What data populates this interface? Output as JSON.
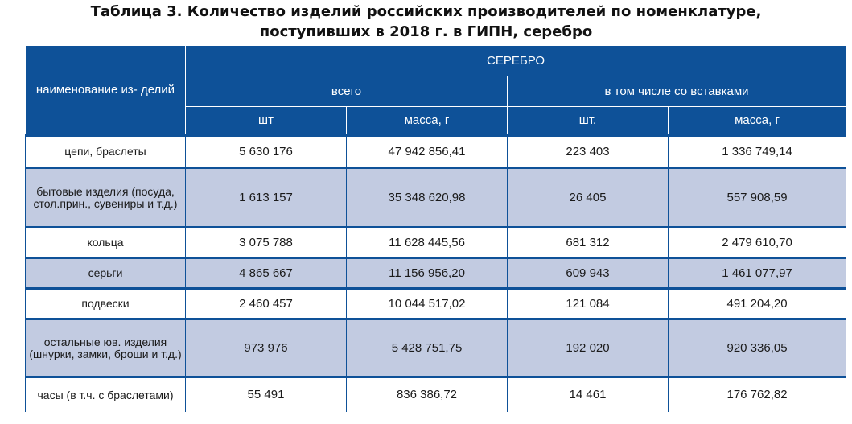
{
  "title": {
    "line1": "Таблица 3. Количество  изделий российских производителей по номенклатуре,",
    "line2": "поступивших в 2018 г. в ГИПН, серебро"
  },
  "header": {
    "name_col": "наименование из- делий",
    "metal": "СЕРЕБРО",
    "groups": [
      "всего",
      "в том числе со вставками"
    ],
    "subcols": [
      "шт",
      "масса, г",
      "шт.",
      "масса, г"
    ]
  },
  "rows": [
    {
      "name": "цепи, браслеты",
      "total_pcs": "5 630 176",
      "total_mass": "47 942 856,41",
      "ins_pcs": "223 403",
      "ins_mass": "1 336 749,14"
    },
    {
      "name": "бытовые изделия (посуда, стол.прин., сувениры и т.д.)",
      "total_pcs": "1 613 157",
      "total_mass": "35 348 620,98",
      "ins_pcs": "26 405",
      "ins_mass": "557 908,59"
    },
    {
      "name": "кольца",
      "total_pcs": "3 075 788",
      "total_mass": "11 628 445,56",
      "ins_pcs": "681 312",
      "ins_mass": "2 479 610,70"
    },
    {
      "name": "серьги",
      "total_pcs": "4 865 667",
      "total_mass": "11 156 956,20",
      "ins_pcs": "609 943",
      "ins_mass": "1 461 077,97"
    },
    {
      "name": "подвески",
      "total_pcs": "2 460 457",
      "total_mass": "10 044 517,02",
      "ins_pcs": "121 084",
      "ins_mass": "491 204,20"
    },
    {
      "name": "остальные юв. изделия (шнурки, замки, броши и т.д.)",
      "total_pcs": "973 976",
      "total_mass": "5 428 751,75",
      "ins_pcs": "192 020",
      "ins_mass": "920 336,05"
    },
    {
      "name": "часы (в т.ч. с браслетами)",
      "total_pcs": "55 491",
      "total_mass": "836 386,72",
      "ins_pcs": "14 461",
      "ins_mass": "176 762,82"
    }
  ]
}
